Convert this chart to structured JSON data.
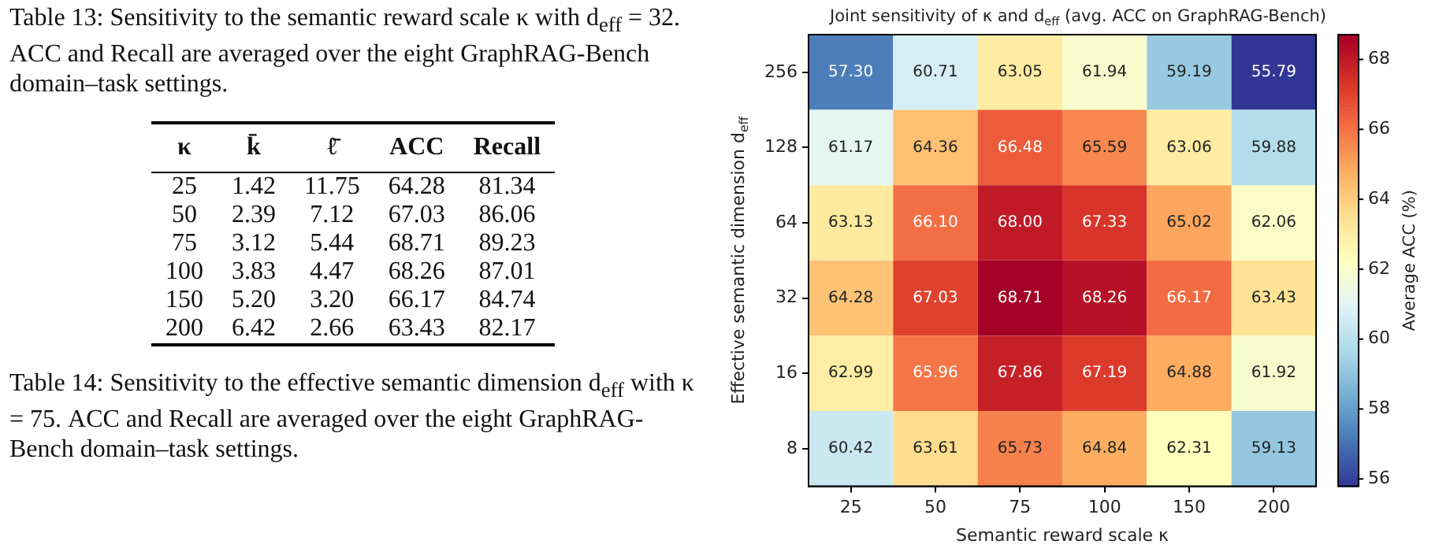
{
  "chart_data": [
    {
      "type": "other",
      "title": "Table 13: Sensitivity to the semantic reward scale κ with d$_{eff}$ = 32. ACC and Recall are averaged over the eight GraphRAG-Bench domain–task settings.",
      "annotations": [
        "κ k̄ ℓ̄ ACC Recall",
        "25 1.42 11.75 64.28 81.34",
        "50 2.39 7.12 67.03 86.06",
        "75 3.12 5.44 68.71 89.23",
        "100 3.83 4.47 68.26 87.01",
        "150 5.20 3.20 66.17 84.74",
        "200 6.42 2.66 63.43 82.17"
      ],
      "subtitle": "Table 14: Sensitivity to the effective semantic dimension d$_{eff}$ with κ = 75. ACC and Recall are averaged over the eight GraphRAG-Bench domain–task settings."
    },
    {
      "type": "heatmap",
      "title": "Joint sensitivity of κ and d$_{eff}$ (avg. ACC on GraphRAG-Bench)",
      "xlabel": "Semantic reward scale κ",
      "ylabel": "Effective semantic dimension d$_{eff}$",
      "clabel": "Average ACC (%)",
      "categories": [
        "25",
        "50",
        "75",
        "100",
        "150",
        "200"
      ],
      "y_categories": [
        "256",
        "128",
        "64",
        "32",
        "16",
        "8"
      ],
      "cells": [
        [
          57.3,
          60.71,
          63.05,
          61.94,
          59.19,
          55.79
        ],
        [
          61.17,
          64.36,
          66.48,
          65.59,
          63.06,
          59.88
        ],
        [
          63.13,
          66.1,
          68.0,
          67.33,
          65.02,
          62.06
        ],
        [
          64.28,
          67.03,
          68.71,
          68.26,
          66.17,
          63.43
        ],
        [
          62.99,
          65.96,
          67.86,
          67.19,
          64.88,
          61.92
        ],
        [
          60.42,
          63.61,
          65.73,
          64.84,
          62.31,
          59.13
        ]
      ],
      "cell_labels": [
        [
          "57.30",
          "60.71",
          "63.05",
          "61.94",
          "59.19",
          "55.79"
        ],
        [
          "61.17",
          "64.36",
          "66.48",
          "65.59",
          "63.06",
          "59.88"
        ],
        [
          "63.13",
          "66.10",
          "68.00",
          "67.33",
          "65.02",
          "62.06"
        ],
        [
          "64.28",
          "67.03",
          "68.71",
          "68.26",
          "66.17",
          "63.43"
        ],
        [
          "62.99",
          "65.96",
          "67.86",
          "67.19",
          "64.88",
          "61.92"
        ],
        [
          "60.42",
          "63.61",
          "65.73",
          "64.84",
          "62.31",
          "59.13"
        ]
      ],
      "clim": [
        55.79,
        68.71
      ],
      "cticks": [
        56,
        58,
        60,
        62,
        64,
        66,
        68
      ]
    }
  ]
}
